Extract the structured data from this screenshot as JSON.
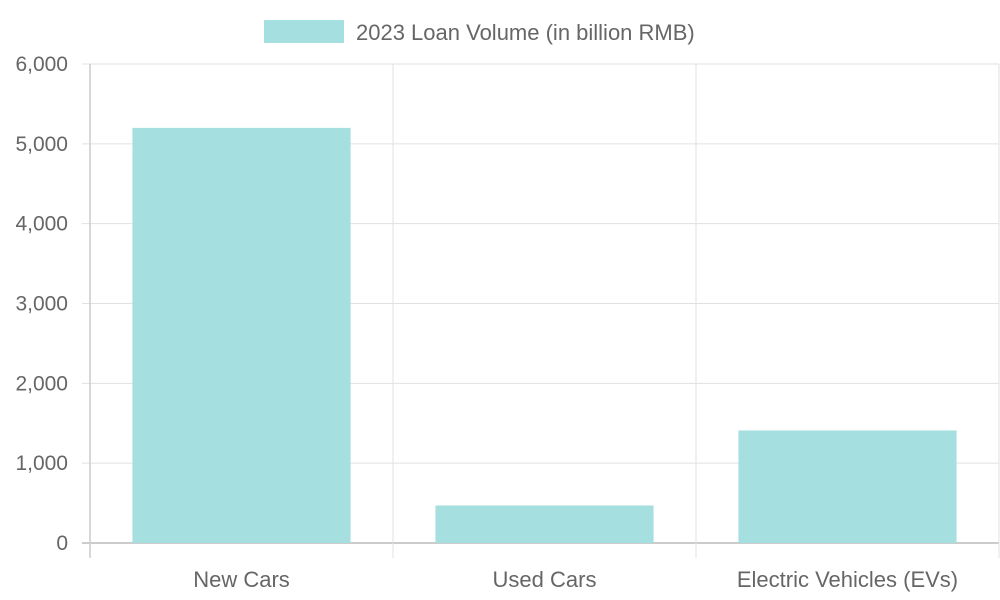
{
  "chart_data": {
    "type": "bar",
    "title": "",
    "xlabel": "",
    "ylabel": "",
    "categories": [
      "New Cars",
      "Used Cars",
      "Electric Vehicles (EVs)"
    ],
    "series": [
      {
        "name": "2023 Loan Volume (in billion RMB)",
        "values": [
          5200,
          470,
          1410
        ],
        "color": "#a6dfe0"
      }
    ],
    "ylim": [
      0,
      6000
    ],
    "yticks": [
      "0",
      "1,000",
      "2,000",
      "3,000",
      "4,000",
      "5,000",
      "6,000"
    ],
    "grid": true,
    "legend": "top-center"
  }
}
